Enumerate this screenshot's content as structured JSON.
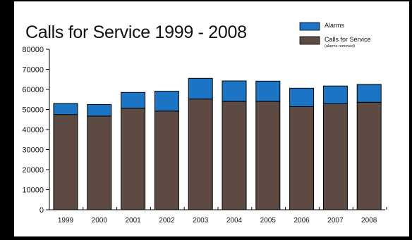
{
  "chart_data": {
    "type": "bar",
    "stacked": true,
    "title": "Calls for Service 1999 - 2008",
    "xlabel": "",
    "ylabel": "",
    "categories": [
      "1999",
      "2000",
      "2001",
      "2002",
      "2003",
      "2004",
      "2005",
      "2006",
      "2007",
      "2008"
    ],
    "series": [
      {
        "name": "Calls  for Service",
        "note": "(alarms removed)",
        "color": "#5c4a43",
        "values": [
          47500,
          46700,
          50600,
          49200,
          55200,
          54000,
          54000,
          51400,
          52900,
          53600
        ]
      },
      {
        "name": "Alarms",
        "color": "#1b75c4",
        "values": [
          5500,
          5800,
          7900,
          9900,
          10300,
          10200,
          10100,
          9200,
          8800,
          8900
        ]
      }
    ],
    "ylim": [
      0,
      80000
    ],
    "yticks": [
      0,
      10000,
      20000,
      30000,
      40000,
      50000,
      60000,
      70000,
      80000
    ],
    "grid": false,
    "legend_position": "top-right"
  }
}
